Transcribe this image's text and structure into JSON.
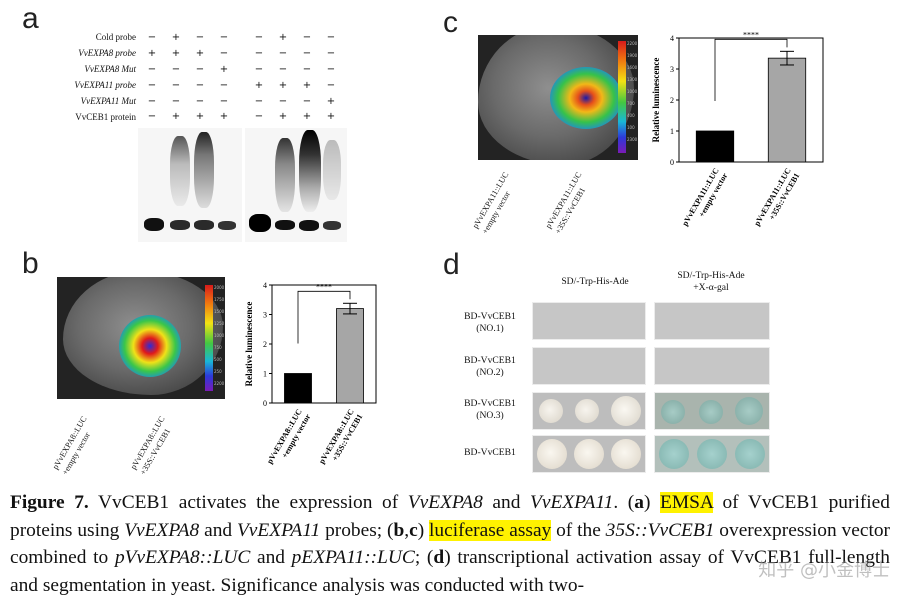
{
  "panels": {
    "a": {
      "letter": "a",
      "row_labels": [
        {
          "text": "Cold probe",
          "italic": false
        },
        {
          "text": "VvEXPA8 probe",
          "italic": true
        },
        {
          "text": "VvEXPA8 Mut",
          "italic": true
        },
        {
          "text": "VvEXPA11 probe",
          "italic": true
        },
        {
          "text": "VvEXPA11 Mut",
          "italic": true
        },
        {
          "text": "VvCEB1 protein",
          "italic": false
        }
      ],
      "grid_left": [
        [
          "−",
          "+",
          "−",
          "−"
        ],
        [
          "+",
          "+",
          "+",
          "−"
        ],
        [
          "−",
          "−",
          "−",
          "+"
        ],
        [
          "−",
          "−",
          "−",
          "−"
        ],
        [
          "−",
          "−",
          "−",
          "−"
        ],
        [
          "−",
          "+",
          "+",
          "+"
        ]
      ],
      "grid_right": [
        [
          "−",
          "+",
          "−",
          "−"
        ],
        [
          "−",
          "−",
          "−",
          "−"
        ],
        [
          "−",
          "−",
          "−",
          "−"
        ],
        [
          "+",
          "+",
          "+",
          "−"
        ],
        [
          "−",
          "−",
          "−",
          "+"
        ],
        [
          "−",
          "+",
          "+",
          "+"
        ]
      ]
    },
    "b": {
      "letter": "b",
      "leaf_labels": [
        "pVvEXPA8::LUC\n+empty vector",
        "pVvEXPA8::LUC\n+35S::VvCEB1"
      ],
      "chart": {
        "ylabel": "Relative luminescence",
        "categories": [
          "pVvEXPA8::LUC\n+empty vector",
          "pVvEXPA8::LUC\n+35S::VvCEB1"
        ],
        "colors": [
          "#000000",
          "#a6a6a6"
        ],
        "significance": "****"
      },
      "colorbar_ticks": [
        "2000",
        "1750",
        "1500",
        "1250",
        "1000",
        "750",
        "500",
        "250",
        "2200"
      ]
    },
    "c": {
      "letter": "c",
      "leaf_labels": [
        "pVvEXPA11::LUC\n+empty vector",
        "pVvEXPA11::LUC\n+35S::VvCEB1"
      ],
      "chart": {
        "ylabel": "Relative luminescence",
        "categories": [
          "pVvEXPA11::LUC\n+empty vector",
          "pVvEXPA11::LUC\n+35S::VvCEB1"
        ],
        "colors": [
          "#000000",
          "#a6a6a6"
        ],
        "significance": "****"
      },
      "colorbar_ticks": [
        "2200",
        "1900",
        "1600",
        "1300",
        "1000",
        "700",
        "400",
        "100",
        "2300"
      ]
    },
    "d": {
      "letter": "d",
      "col_headers": [
        "SD/-Trp-His-Ade",
        "SD/-Trp-His-Ade\n+X-α-gal"
      ],
      "row_labels": [
        "BD-VvCEB1\n(NO.1)",
        "BD-VvCEB1\n(NO.2)",
        "BD-VvCEB1\n(NO.3)",
        "BD-VvCEB1"
      ]
    }
  },
  "chart_data": [
    {
      "type": "bar",
      "panel": "b",
      "categories": [
        "pVvEXPA8::LUC\n+empty vector",
        "pVvEXPA8::LUC\n+35S::VvCEB1"
      ],
      "values": [
        1.0,
        3.2
      ],
      "errors": [
        0,
        0.18
      ],
      "ylabel": "Relative luminescence",
      "ylim": [
        0,
        4
      ],
      "yticks": [
        0,
        1,
        2,
        3,
        4
      ],
      "significance": "****"
    },
    {
      "type": "bar",
      "panel": "c",
      "categories": [
        "pVvEXPA11::LUC\n+empty vector",
        "pVvEXPA11::LUC\n+35S::VvCEB1"
      ],
      "values": [
        1.0,
        3.35
      ],
      "errors": [
        0,
        0.22
      ],
      "ylabel": "Relative luminescence",
      "ylim": [
        0,
        4
      ],
      "yticks": [
        0,
        1,
        2,
        3,
        4
      ],
      "significance": "****"
    }
  ],
  "caption": {
    "fig_label": "Figure 7.",
    "segments": [
      {
        "t": " VvCEB1 activates the expression of ",
        "s": ""
      },
      {
        "t": "VvEXPA8",
        "s": "i"
      },
      {
        "t": " and ",
        "s": ""
      },
      {
        "t": "VvEXPA11",
        "s": "i"
      },
      {
        "t": ".  (",
        "s": ""
      },
      {
        "t": "a",
        "s": "b"
      },
      {
        "t": ") ",
        "s": ""
      },
      {
        "t": "EMSA",
        "s": "hl"
      },
      {
        "t": " of VvCEB1 purified proteins using ",
        "s": ""
      },
      {
        "t": "VvEXPA8",
        "s": "i"
      },
      {
        "t": " and ",
        "s": ""
      },
      {
        "t": "VvEXPA11",
        "s": "i"
      },
      {
        "t": " probes; (",
        "s": ""
      },
      {
        "t": "b",
        "s": "b"
      },
      {
        "t": ",",
        "s": ""
      },
      {
        "t": "c",
        "s": "b"
      },
      {
        "t": ") ",
        "s": ""
      },
      {
        "t": "luciferase assay",
        "s": "hl"
      },
      {
        "t": " of the ",
        "s": ""
      },
      {
        "t": "35S::VvCEB1",
        "s": "i"
      },
      {
        "t": " overexpression vector combined to ",
        "s": ""
      },
      {
        "t": "pVvEXPA8::LUC",
        "s": "i"
      },
      {
        "t": " and ",
        "s": ""
      },
      {
        "t": "pEXPA11::LUC",
        "s": "i"
      },
      {
        "t": "; (",
        "s": ""
      },
      {
        "t": "d",
        "s": "b"
      },
      {
        "t": ") transcriptional activation assay of VvCEB1 full-length and segmentation in yeast. Significance analysis was conducted with two-",
        "s": ""
      }
    ]
  },
  "watermark": "知乎 @小金博士"
}
